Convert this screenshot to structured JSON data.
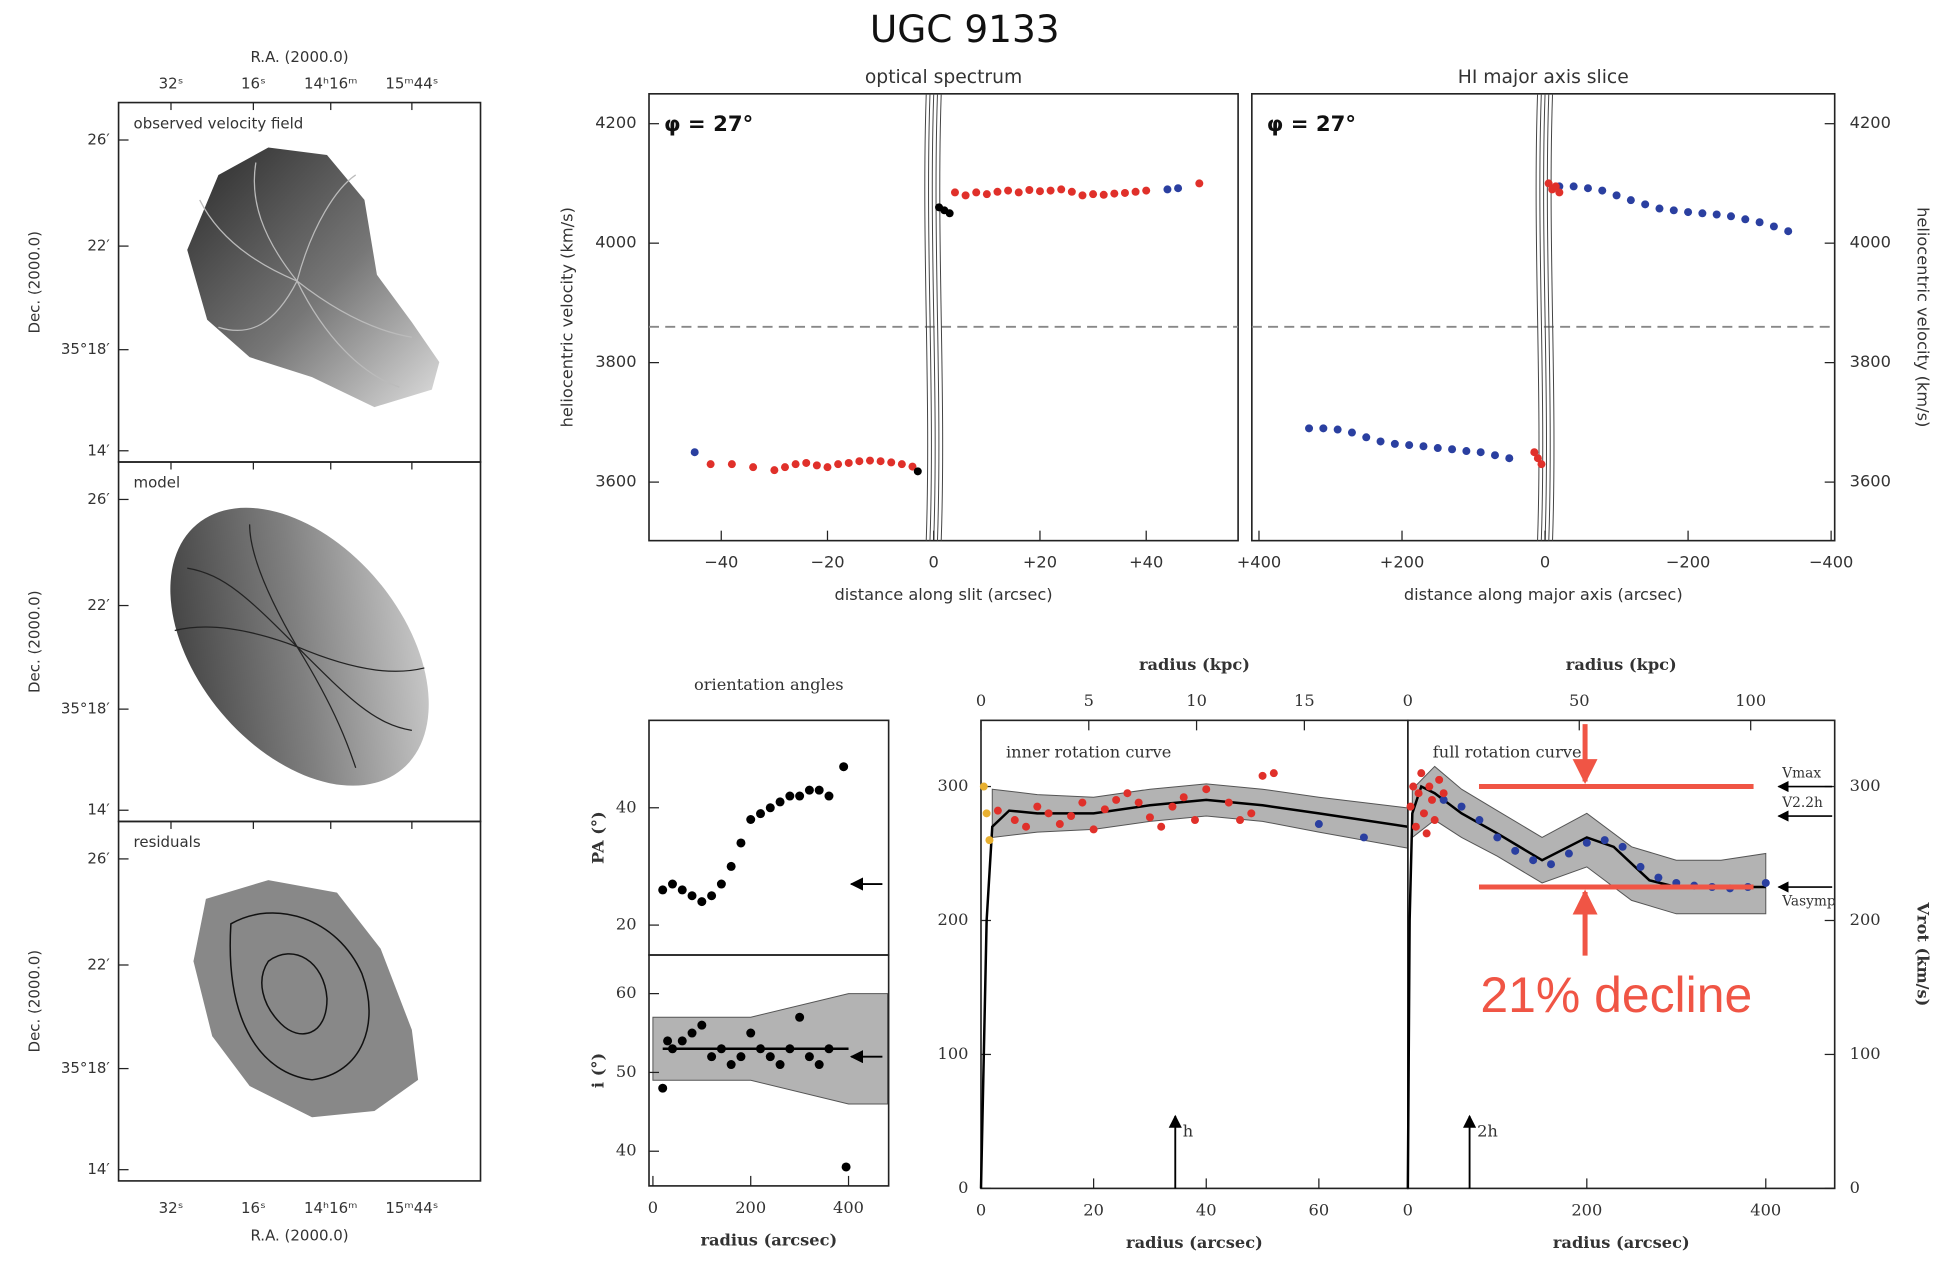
{
  "title": "UGC 9133",
  "annotation": "21% decline",
  "maps": {
    "ra_label": "R.A. (2000.0)",
    "dec_label": "Dec. (2000.0)",
    "ra_ticks": [
      "32ˢ",
      "16ˢ",
      "14ʰ16ᵐ",
      "15ᵐ44ˢ"
    ],
    "dec_ticks": [
      "26′",
      "22′",
      "35°18′",
      "14′"
    ],
    "panels": [
      "observed velocity field",
      "model",
      "residuals"
    ]
  },
  "charts": [
    {
      "type": "scatter",
      "title": "optical spectrum",
      "xlabel": "distance along slit (arcsec)",
      "ylabel": "heliocentric velocity (km/s)",
      "label": "φ = 27°",
      "xlim": [
        -53.6,
        57.3
      ],
      "ylim": [
        3502,
        4250
      ],
      "xticks": [
        {
          "value": -40,
          "label": "−40"
        },
        {
          "value": -20,
          "label": "−20"
        },
        0,
        {
          "value": 20,
          "label": "+20"
        },
        {
          "value": 40,
          "label": "+40"
        }
      ],
      "yticks": [
        3600,
        3800,
        4000,
        4200
      ],
      "hline": 3860,
      "series": [
        {
          "color": "#e0302a",
          "x": [
            -42,
            -38,
            -34,
            -30,
            -28,
            -26,
            -24,
            -22,
            -20,
            -18,
            -16,
            -14,
            -12,
            -10,
            -8,
            -6,
            -4,
            4,
            6,
            8,
            10,
            12,
            14,
            16,
            18,
            20,
            22,
            24,
            26,
            28,
            30,
            32,
            34,
            36,
            38,
            40,
            50
          ],
          "values": [
            3630,
            3630,
            3625,
            3620,
            3625,
            3630,
            3632,
            3628,
            3625,
            3630,
            3632,
            3635,
            3636,
            3635,
            3633,
            3630,
            3626,
            4085,
            4080,
            4085,
            4082,
            4086,
            4088,
            4085,
            4089,
            4087,
            4088,
            4090,
            4086,
            4080,
            4082,
            4081,
            4083,
            4084,
            4086,
            4088,
            4100
          ]
        },
        {
          "color": "#2a3fa0",
          "x": [
            -45,
            44,
            46
          ],
          "values": [
            3650,
            4090,
            4092
          ]
        },
        {
          "color": "#000000",
          "x": [
            -3,
            1,
            2,
            3
          ],
          "values": [
            3618,
            4060,
            4055,
            4050
          ]
        }
      ]
    },
    {
      "type": "scatter",
      "title": "HI major axis slice",
      "xlabel": "distance along major axis (arcsec)",
      "ylabel": "heliocentric velocity (km/s)",
      "label": "φ = 27°",
      "xlim": [
        410,
        -405
      ],
      "ylim": [
        3502,
        4250
      ],
      "xticks": [
        {
          "value": 400,
          "label": "+400"
        },
        {
          "value": 200,
          "label": "+200"
        },
        0,
        {
          "value": -200,
          "label": "−200"
        },
        {
          "value": -400,
          "label": "−400"
        }
      ],
      "yticks": [
        3600,
        3800,
        4000,
        4200
      ],
      "hline": 3860,
      "series": [
        {
          "color": "#2a3fa0",
          "x": [
            330,
            310,
            290,
            270,
            250,
            230,
            210,
            190,
            170,
            150,
            130,
            110,
            90,
            70,
            50,
            -20,
            -40,
            -60,
            -80,
            -100,
            -120,
            -140,
            -160,
            -180,
            -200,
            -220,
            -240,
            -260,
            -280,
            -300,
            -320,
            -340
          ],
          "values": [
            3690,
            3690,
            3688,
            3683,
            3675,
            3668,
            3664,
            3662,
            3660,
            3657,
            3655,
            3652,
            3650,
            3645,
            3640,
            4095,
            4095,
            4092,
            4088,
            4080,
            4072,
            4065,
            4058,
            4055,
            4052,
            4050,
            4048,
            4045,
            4040,
            4035,
            4028,
            4020
          ]
        },
        {
          "color": "#e0302a",
          "x": [
            10,
            5,
            15,
            -5,
            -10,
            -15,
            -20
          ],
          "values": [
            3640,
            3630,
            3650,
            4100,
            4090,
            4095,
            4085
          ]
        }
      ]
    },
    {
      "type": "scatter",
      "title": "orientation angles",
      "ylabel": "PA (°)",
      "xlim": [
        -8,
        482
      ],
      "ylim": [
        14.9,
        54.9
      ],
      "yticks": [
        20,
        40
      ],
      "arrow": 27,
      "series": [
        {
          "color": "#000000",
          "x": [
            20,
            40,
            60,
            80,
            100,
            120,
            140,
            160,
            180,
            200,
            220,
            240,
            260,
            280,
            300,
            320,
            340,
            360,
            390
          ],
          "values": [
            26,
            27,
            26,
            25,
            24,
            25,
            27,
            30,
            34,
            38,
            39,
            40,
            41,
            42,
            42,
            43,
            43,
            42,
            47
          ]
        }
      ]
    },
    {
      "type": "scatter",
      "xlabel": "radius (arcsec)",
      "ylabel": "i (°)",
      "xlim": [
        -8,
        482
      ],
      "ylim": [
        35.6,
        64.9
      ],
      "xticks": [
        0,
        200,
        400
      ],
      "yticks": [
        40,
        50,
        60
      ],
      "arrow": 52,
      "band": {
        "x": [
          0,
          200,
          400,
          480
        ],
        "lo": [
          49,
          49,
          46,
          46
        ],
        "hi": [
          57,
          57,
          60,
          60
        ]
      },
      "model": {
        "x": [
          20,
          400
        ],
        "values": [
          53,
          53
        ]
      },
      "series": [
        {
          "color": "#000000",
          "x": [
            20,
            30,
            40,
            60,
            80,
            100,
            120,
            140,
            160,
            180,
            200,
            220,
            240,
            260,
            280,
            300,
            320,
            340,
            360,
            395
          ],
          "values": [
            48,
            54,
            53,
            54,
            55,
            56,
            52,
            53,
            51,
            52,
            55,
            53,
            52,
            51,
            53,
            57,
            52,
            51,
            53,
            38
          ]
        }
      ]
    },
    {
      "type": "rotation",
      "title": "inner rotation curve",
      "xlabel": "radius (arcsec)",
      "x2label": "radius (kpc)",
      "xlim": [
        0,
        75.8
      ],
      "x2lim": [
        0,
        19.8
      ],
      "ylim": [
        0,
        349.4
      ],
      "xticks": [
        0,
        20,
        40,
        60
      ],
      "x2ticks": [
        0,
        5,
        10,
        15
      ],
      "yticks": [
        0,
        100,
        200,
        300
      ],
      "marker": {
        "label": "h",
        "x": 34.5
      },
      "band": {
        "x": [
          2,
          10,
          20,
          30,
          40,
          50,
          60,
          75.8
        ],
        "lo": [
          262,
          266,
          268,
          274,
          278,
          274,
          266,
          254
        ],
        "hi": [
          298,
          294,
          292,
          298,
          302,
          298,
          292,
          284
        ]
      },
      "model": {
        "x": [
          0,
          1,
          2,
          5,
          10,
          20,
          30,
          40,
          50,
          60,
          75.8
        ],
        "values": [
          0,
          200,
          270,
          282,
          280,
          280,
          286,
          290,
          286,
          280,
          270
        ]
      },
      "series": [
        {
          "color": "#e0302a",
          "x": [
            3,
            6,
            8,
            10,
            12,
            14,
            16,
            18,
            20,
            22,
            24,
            26,
            28,
            30,
            32,
            34,
            36,
            38,
            40,
            44,
            46,
            48,
            50,
            52
          ],
          "values": [
            282,
            275,
            270,
            285,
            280,
            272,
            278,
            288,
            268,
            283,
            290,
            295,
            288,
            277,
            270,
            285,
            292,
            275,
            298,
            288,
            275,
            280,
            308,
            310
          ]
        },
        {
          "color": "#e8b030",
          "x": [
            0.5,
            1,
            1.5
          ],
          "values": [
            300,
            280,
            260
          ]
        },
        {
          "color": "#2a3fa0",
          "x": [
            60,
            68
          ],
          "values": [
            272,
            262
          ]
        }
      ]
    },
    {
      "type": "rotation",
      "title": "full rotation curve",
      "xlabel": "radius (arcsec)",
      "x2label": "radius (kpc)",
      "ylabel": "Vrot (km/s)",
      "xlim": [
        0,
        477
      ],
      "x2lim": [
        0,
        124.5
      ],
      "ylim": [
        0,
        349.4
      ],
      "xticks": [
        0,
        200,
        400
      ],
      "x2ticks": [
        0,
        50,
        100
      ],
      "yticks": [
        0,
        100,
        200,
        300
      ],
      "marker": {
        "label": "2h",
        "x": 69
      },
      "levels": [
        {
          "label": "Vmax",
          "value": 300
        },
        {
          "label": "V2.2h",
          "value": 278
        },
        {
          "label": "Vasymp",
          "value": 225
        }
      ],
      "band": {
        "x": [
          5,
          30,
          60,
          100,
          150,
          200,
          250,
          300,
          350,
          400
        ],
        "lo": [
          262,
          275,
          262,
          248,
          228,
          240,
          215,
          205,
          205,
          205
        ],
        "hi": [
          298,
          315,
          298,
          282,
          262,
          280,
          255,
          245,
          245,
          250
        ]
      },
      "model": {
        "x": [
          0,
          2,
          5,
          15,
          30,
          60,
          100,
          150,
          200,
          230,
          270,
          300,
          350,
          400
        ],
        "values": [
          0,
          200,
          280,
          300,
          295,
          280,
          265,
          245,
          262,
          255,
          230,
          225,
          225,
          225
        ]
      },
      "series": [
        {
          "color": "#2a3fa0",
          "x": [
            40,
            60,
            80,
            100,
            120,
            140,
            160,
            180,
            200,
            220,
            240,
            260,
            280,
            300,
            320,
            340,
            360,
            380,
            400
          ],
          "values": [
            290,
            285,
            275,
            262,
            252,
            245,
            242,
            250,
            258,
            260,
            255,
            240,
            232,
            228,
            226,
            225,
            224,
            225,
            228
          ]
        },
        {
          "color": "#e0302a",
          "x": [
            3,
            6,
            9,
            12,
            15,
            18,
            21,
            24,
            27,
            30,
            35,
            40
          ],
          "values": [
            285,
            300,
            270,
            295,
            310,
            280,
            265,
            300,
            290,
            275,
            305,
            295
          ]
        }
      ]
    }
  ]
}
